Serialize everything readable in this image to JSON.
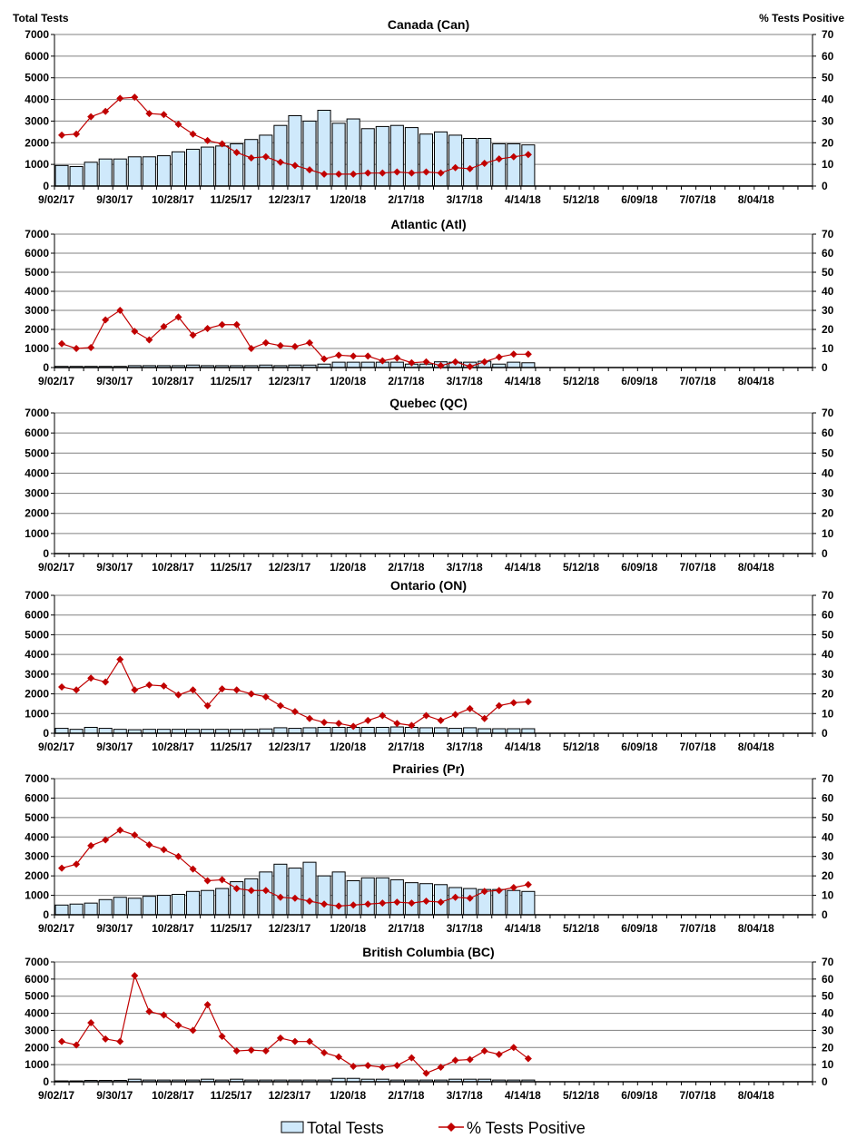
{
  "chart_data": {
    "type": "bar+line",
    "left_axis_title": "Total Tests",
    "right_axis_title": "% Tests Positive",
    "left_ylim": [
      0,
      7000
    ],
    "right_ylim": [
      0,
      70
    ],
    "left_ticks": [
      "0",
      "1000",
      "2000",
      "3000",
      "4000",
      "5000",
      "6000",
      "7000"
    ],
    "right_ticks": [
      "0",
      "10",
      "20",
      "30",
      "40",
      "50",
      "60",
      "70"
    ],
    "x_tick_labels": [
      "9/02/17",
      "9/30/17",
      "10/28/17",
      "11/25/17",
      "12/23/17",
      "1/20/18",
      "2/17/18",
      "3/17/18",
      "4/14/18",
      "5/12/18",
      "6/09/18",
      "7/07/18",
      "8/04/18"
    ],
    "weeks_total": 52,
    "grid": true,
    "legend": {
      "placement": "bottom",
      "bar_label": "Total Tests",
      "line_label": "% Tests Positive"
    },
    "colors": {
      "bar_fill": "#cfe9fb",
      "bar_stroke": "#000000",
      "line": "#c00000"
    },
    "panels": [
      {
        "title": "Canada (Can)",
        "total_tests": [
          950,
          900,
          1100,
          1250,
          1250,
          1350,
          1350,
          1400,
          1580,
          1700,
          1800,
          1850,
          1950,
          2150,
          2350,
          2800,
          3250,
          3000,
          3500,
          2900,
          3100,
          2650,
          2750,
          2800,
          2700,
          2400,
          2500,
          2350,
          2200,
          2200,
          1950,
          1950,
          1900
        ],
        "pct_positive": [
          23.5,
          24,
          32,
          34.5,
          40.5,
          41,
          33.5,
          33,
          28.5,
          24,
          21,
          19.5,
          15.5,
          13,
          13.5,
          11,
          9.5,
          7.5,
          5.5,
          5.5,
          5.5,
          6,
          6,
          6.5,
          6,
          6.5,
          6,
          8.5,
          8,
          10.5,
          12.5,
          13.5,
          14.5
        ]
      },
      {
        "title": "Atlantic (Atl)",
        "total_tests": [
          60,
          60,
          60,
          60,
          60,
          100,
          100,
          100,
          100,
          130,
          100,
          100,
          100,
          100,
          130,
          100,
          130,
          130,
          180,
          280,
          280,
          280,
          280,
          280,
          180,
          180,
          300,
          280,
          280,
          330,
          180,
          280,
          250
        ],
        "pct_positive": [
          12.5,
          10,
          10.5,
          25,
          30,
          19,
          14.5,
          21.5,
          26.5,
          17,
          20.5,
          22.5,
          22.5,
          10,
          13,
          11.5,
          11,
          13,
          4.5,
          6.5,
          6,
          6,
          3.5,
          5,
          2.5,
          3,
          1,
          3,
          0.5,
          3,
          5.5,
          7,
          7
        ]
      },
      {
        "title": "Quebec (QC)",
        "total_tests": [],
        "pct_positive": []
      },
      {
        "title": "Ontario (ON)",
        "total_tests": [
          250,
          200,
          300,
          250,
          200,
          180,
          200,
          200,
          200,
          200,
          200,
          200,
          200,
          200,
          220,
          280,
          250,
          280,
          300,
          300,
          300,
          300,
          300,
          320,
          300,
          280,
          280,
          250,
          280,
          230,
          230,
          230,
          230
        ],
        "pct_positive": [
          23.5,
          22,
          28,
          26,
          37.5,
          22,
          24.5,
          24,
          19.5,
          22,
          14,
          22.5,
          22,
          20,
          18.5,
          14,
          11,
          7.5,
          5.5,
          5,
          3.5,
          6.5,
          9,
          5,
          4,
          9,
          6.5,
          9.5,
          12.5,
          7.5,
          14,
          15.5,
          16
        ]
      },
      {
        "title": "Prairies (Pr)",
        "total_tests": [
          500,
          550,
          600,
          780,
          900,
          850,
          950,
          1000,
          1050,
          1200,
          1250,
          1350,
          1700,
          1850,
          2200,
          2600,
          2400,
          2700,
          2000,
          2200,
          1750,
          1900,
          1900,
          1800,
          1650,
          1600,
          1550,
          1400,
          1350,
          1300,
          1300,
          1250,
          1200
        ],
        "pct_positive": [
          24,
          26,
          35.5,
          38.5,
          43.5,
          41,
          36,
          33.5,
          30,
          23.5,
          17.5,
          18,
          13.5,
          12.5,
          12.5,
          9,
          8.5,
          7,
          5.5,
          4.5,
          5,
          5.5,
          6,
          6.5,
          6,
          7,
          6.5,
          9,
          8.5,
          12,
          12.5,
          14,
          15.5
        ]
      },
      {
        "title": "British Columbia (BC)",
        "total_tests": [
          50,
          50,
          80,
          80,
          80,
          150,
          100,
          100,
          100,
          100,
          150,
          100,
          150,
          100,
          100,
          100,
          100,
          100,
          100,
          200,
          200,
          150,
          150,
          100,
          100,
          100,
          100,
          150,
          150,
          150,
          100,
          100,
          100
        ],
        "pct_positive": [
          23.5,
          21.5,
          34.5,
          25,
          23.5,
          62,
          41,
          39,
          33,
          30,
          45,
          26.5,
          18,
          18.5,
          18,
          25.5,
          23.5,
          23.5,
          17,
          14.5,
          9,
          9.5,
          8.5,
          9.5,
          14,
          5,
          8.5,
          12.5,
          13,
          18,
          16,
          20,
          13.5
        ]
      }
    ]
  }
}
